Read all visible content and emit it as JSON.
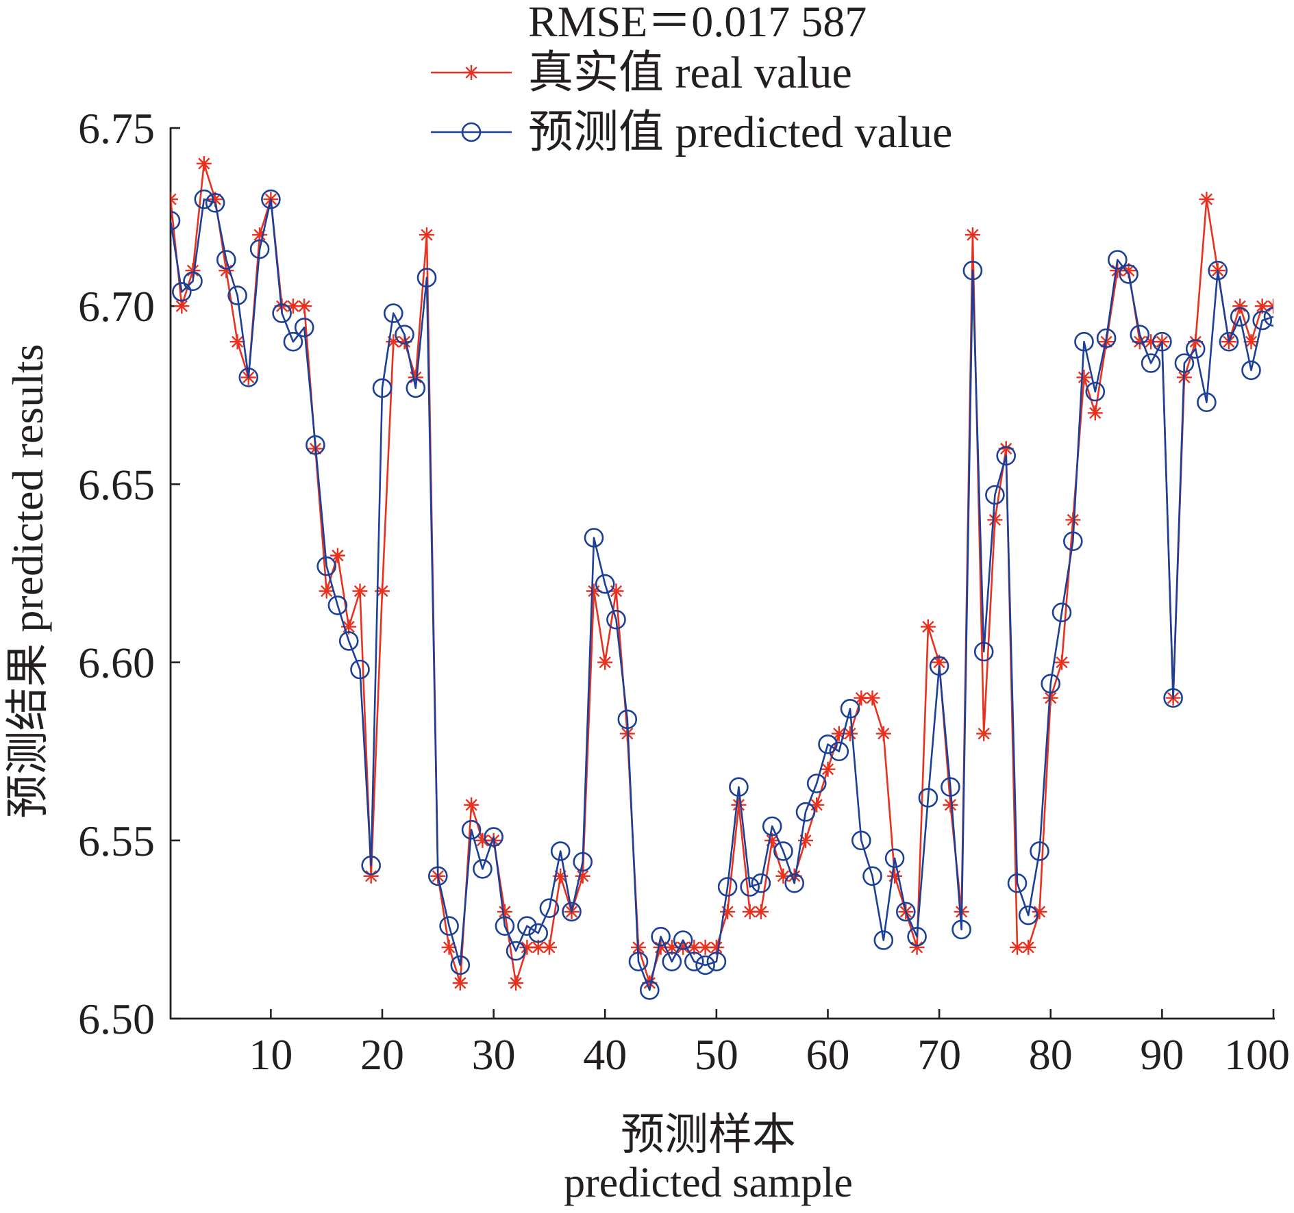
{
  "chart_data": {
    "type": "line",
    "title": "RMSE＝0.017 587",
    "xlabel": [
      "预测样本",
      "predicted sample"
    ],
    "ylabel": "预测结果 predicted results",
    "xlim": [
      1,
      100
    ],
    "ylim": [
      6.5,
      6.75
    ],
    "xticks": [
      10,
      20,
      30,
      40,
      50,
      60,
      70,
      80,
      90,
      100
    ],
    "xtick_labels": [
      "10",
      "20",
      "30",
      "40",
      "50",
      "60",
      "70",
      "80",
      "90",
      "100"
    ],
    "yticks": [
      6.5,
      6.55,
      6.6,
      6.65,
      6.7,
      6.75
    ],
    "ytick_labels": [
      "6.50",
      "6.55",
      "6.60",
      "6.65",
      "6.70",
      "6.75"
    ],
    "grid": false,
    "legend": {
      "placement": "top-center"
    },
    "x": [
      1,
      2,
      3,
      4,
      5,
      6,
      7,
      8,
      9,
      10,
      11,
      12,
      13,
      14,
      15,
      16,
      17,
      18,
      19,
      20,
      21,
      22,
      23,
      24,
      25,
      26,
      27,
      28,
      29,
      30,
      31,
      32,
      33,
      34,
      35,
      36,
      37,
      38,
      39,
      40,
      41,
      42,
      43,
      44,
      45,
      46,
      47,
      48,
      49,
      50,
      51,
      52,
      53,
      54,
      55,
      56,
      57,
      58,
      59,
      60,
      61,
      62,
      63,
      64,
      65,
      66,
      67,
      68,
      69,
      70,
      71,
      72,
      73,
      74,
      75,
      76,
      77,
      78,
      79,
      80,
      81,
      82,
      83,
      84,
      85,
      86,
      87,
      88,
      89,
      90,
      91,
      92,
      93,
      94,
      95,
      96,
      97,
      98,
      99,
      100
    ],
    "series": [
      {
        "name": "真实值 real value",
        "color": "#e8311f",
        "marker": "asterisk",
        "values": [
          6.73,
          6.7,
          6.71,
          6.74,
          6.73,
          6.71,
          6.69,
          6.68,
          6.72,
          6.73,
          6.7,
          6.7,
          6.7,
          6.66,
          6.62,
          6.63,
          6.61,
          6.62,
          6.54,
          6.62,
          6.69,
          6.69,
          6.68,
          6.72,
          6.54,
          6.52,
          6.51,
          6.56,
          6.55,
          6.55,
          6.53,
          6.51,
          6.52,
          6.52,
          6.52,
          6.54,
          6.53,
          6.54,
          6.62,
          6.6,
          6.62,
          6.58,
          6.52,
          6.51,
          6.52,
          6.52,
          6.52,
          6.52,
          6.52,
          6.52,
          6.53,
          6.56,
          6.53,
          6.53,
          6.55,
          6.54,
          6.54,
          6.55,
          6.56,
          6.57,
          6.58,
          6.58,
          6.59,
          6.59,
          6.58,
          6.54,
          6.53,
          6.52,
          6.61,
          6.6,
          6.56,
          6.53,
          6.72,
          6.58,
          6.64,
          6.66,
          6.52,
          6.52,
          6.53,
          6.59,
          6.6,
          6.64,
          6.68,
          6.67,
          6.69,
          6.71,
          6.71,
          6.69,
          6.69,
          6.69,
          6.59,
          6.68,
          6.69,
          6.73,
          6.71,
          6.69,
          6.7,
          6.69,
          6.7,
          6.7
        ]
      },
      {
        "name": "预测值 predicted value",
        "color": "#1c3f98",
        "marker": "circle",
        "values": [
          6.724,
          6.704,
          6.707,
          6.73,
          6.729,
          6.713,
          6.703,
          6.68,
          6.716,
          6.73,
          6.698,
          6.69,
          6.694,
          6.661,
          6.627,
          6.616,
          6.606,
          6.598,
          6.543,
          6.677,
          6.698,
          6.692,
          6.677,
          6.708,
          6.54,
          6.526,
          6.515,
          6.553,
          6.542,
          6.551,
          6.526,
          6.519,
          6.526,
          6.524,
          6.531,
          6.547,
          6.53,
          6.544,
          6.635,
          6.622,
          6.612,
          6.584,
          6.516,
          6.508,
          6.523,
          6.516,
          6.522,
          6.516,
          6.515,
          6.516,
          6.537,
          6.565,
          6.537,
          6.538,
          6.554,
          6.547,
          6.538,
          6.558,
          6.566,
          6.577,
          6.575,
          6.587,
          6.55,
          6.54,
          6.522,
          6.545,
          6.53,
          6.523,
          6.562,
          6.599,
          6.565,
          6.525,
          6.71,
          6.603,
          6.647,
          6.658,
          6.538,
          6.529,
          6.547,
          6.594,
          6.614,
          6.634,
          6.69,
          6.676,
          6.691,
          6.713,
          6.709,
          6.692,
          6.684,
          6.69,
          6.59,
          6.684,
          6.688,
          6.673,
          6.71,
          6.69,
          6.697,
          6.682,
          6.696,
          6.697
        ]
      }
    ]
  }
}
